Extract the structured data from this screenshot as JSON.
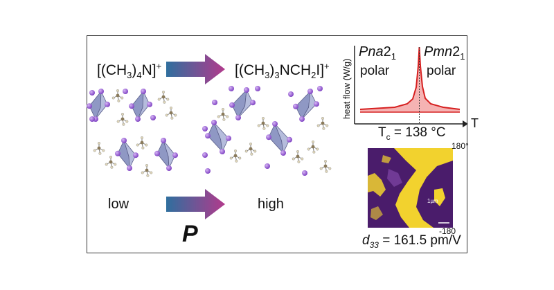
{
  "left": {
    "cation_low": {
      "base": "[(CH",
      "sub1": "3",
      "mid": ")",
      "sub2": "4",
      "tail": "N]",
      "sup": "+"
    },
    "cation_high": {
      "base": "[(CH",
      "sub1": "3",
      "mid": ")",
      "sub2": "3",
      "tail": "NCH",
      "sub3": "2",
      "tail2": "I]",
      "sup": "+"
    },
    "low_label": "low",
    "high_label": "high",
    "property_label": "P"
  },
  "dsc": {
    "phase_low_pre": "Pna",
    "phase_low_post": "2",
    "phase_low_sub": "1",
    "phase_low_desc": "polar",
    "phase_high_pre": "Pmn",
    "phase_high_post": "2",
    "phase_high_sub": "1",
    "phase_high_desc": "polar",
    "ylabel": "heat flow (W/g)",
    "xlabel": "T",
    "tc_sym": "T",
    "tc_sub": "c",
    "tc_value": " = 138 °C"
  },
  "pfm": {
    "scale_max": "180°",
    "scale_min": "-180",
    "d33_sym": "d",
    "d33_sub": "33",
    "d33_value": " = 161.5 pm/V",
    "scalebar_label": "1µm"
  },
  "colors": {
    "arrow_start": "#2f6f9e",
    "arrow_end": "#b23a8c",
    "dsc_curve": "#d62020",
    "octahedron": "#9aa3cc",
    "iodine": "#9a5fd0",
    "pfm_dark": "#4a1c6b",
    "pfm_bright": "#f2d22e"
  }
}
